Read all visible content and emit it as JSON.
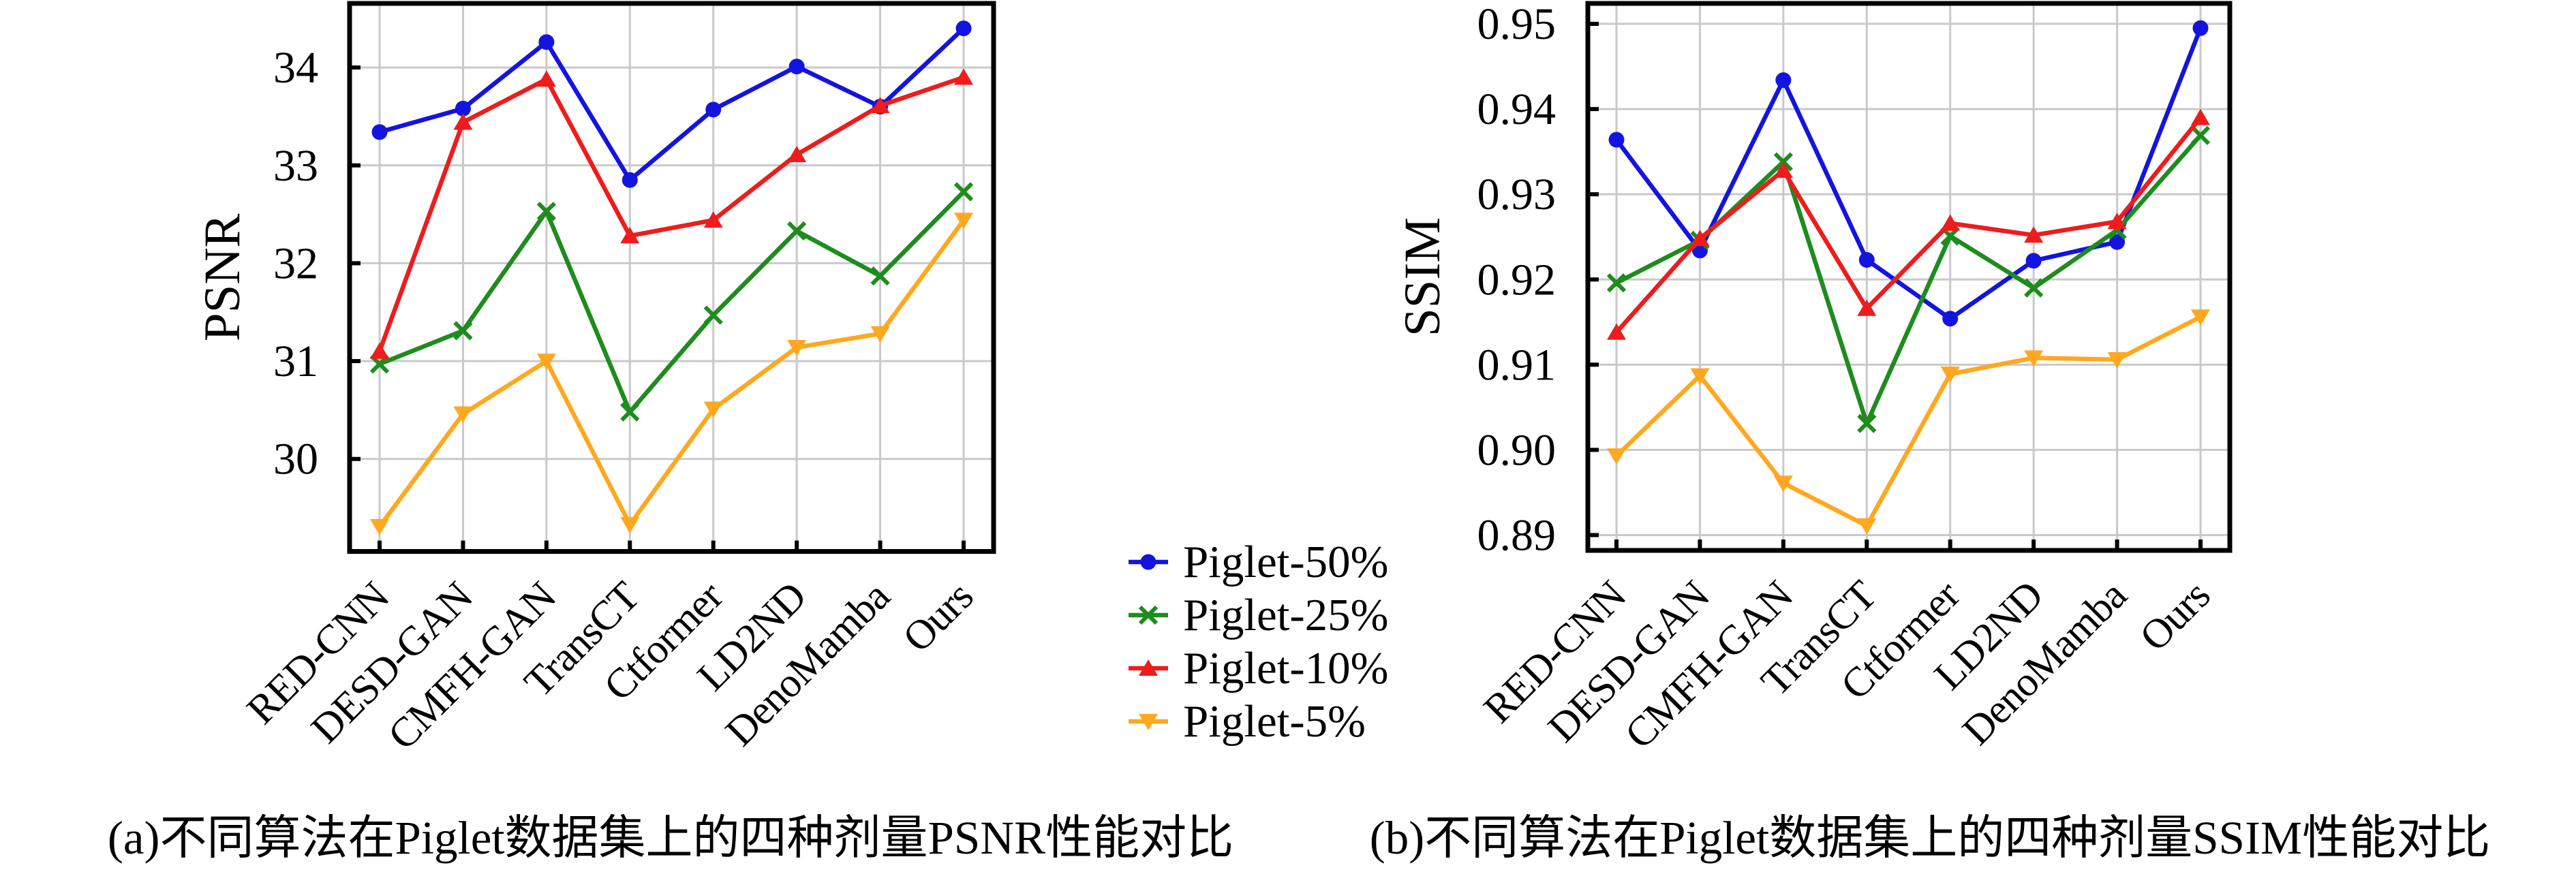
{
  "figure": {
    "background": "#ffffff",
    "text_color": "#000000",
    "grid_color": "#c9c9c9",
    "spine_color": "#000000"
  },
  "legend": {
    "position": "center of figure, between the two subplots",
    "items": [
      {
        "label": "Piglet-50%",
        "color": "#1414e0",
        "marker": "circle"
      },
      {
        "label": "Piglet-25%",
        "color": "#1e8c1e",
        "marker": "x"
      },
      {
        "label": "Piglet-10%",
        "color": "#ee1c1c",
        "marker": "triangle-up"
      },
      {
        "label": "Piglet-5%",
        "color": "#ffa81f",
        "marker": "triangle-down"
      }
    ]
  },
  "chart_data": [
    {
      "type": "line",
      "title": "",
      "caption": "(a)不同算法在Piglet数据集上的四种剂量PSNR性能对比",
      "xlabel": "",
      "ylabel": "PSNR",
      "grid": true,
      "categories": [
        "RED-CNN",
        "DESD-GAN",
        "CMFH-GAN",
        "TransCT",
        "Ctformer",
        "LD2ND",
        "DenoMamba",
        "Ours"
      ],
      "ylim": [
        29.055,
        34.655
      ],
      "yticks": [
        30,
        31,
        32,
        33,
        34
      ],
      "ytick_labels": [
        "30",
        "31",
        "32",
        "33",
        "34"
      ],
      "series": [
        {
          "name": "Piglet-50%",
          "color": "#1414e0",
          "marker": "circle",
          "values": [
            33.34,
            33.58,
            34.26,
            32.85,
            33.57,
            34.01,
            33.6,
            34.4
          ]
        },
        {
          "name": "Piglet-25%",
          "color": "#1e8c1e",
          "marker": "x",
          "values": [
            30.97,
            31.31,
            32.53,
            30.48,
            31.47,
            32.33,
            31.87,
            32.73
          ]
        },
        {
          "name": "Piglet-10%",
          "color": "#ee1c1c",
          "marker": "triangle-up",
          "values": [
            31.1,
            33.44,
            33.88,
            32.28,
            32.44,
            33.11,
            33.61,
            33.9
          ]
        },
        {
          "name": "Piglet-5%",
          "color": "#ffa81f",
          "marker": "triangle-down",
          "values": [
            29.31,
            30.46,
            31.0,
            29.33,
            30.51,
            31.14,
            31.28,
            32.44
          ]
        }
      ]
    },
    {
      "type": "line",
      "title": "",
      "caption": "(b)不同算法在Piglet数据集上的四种剂量SSIM性能对比",
      "xlabel": "",
      "ylabel": "SSIM",
      "grid": true,
      "categories": [
        "RED-CNN",
        "DESD-GAN",
        "CMFH-GAN",
        "TransCT",
        "Ctformer",
        "LD2ND",
        "DenoMamba",
        "Ours"
      ],
      "ylim": [
        0.8882,
        0.9524
      ],
      "yticks": [
        0.89,
        0.9,
        0.91,
        0.92,
        0.93,
        0.94,
        0.95
      ],
      "ytick_labels": [
        "0.89",
        "0.90",
        "0.91",
        "0.92",
        "0.93",
        "0.94",
        "0.95"
      ],
      "series": [
        {
          "name": "Piglet-50%",
          "color": "#1414e0",
          "marker": "circle",
          "values": [
            0.9364,
            0.9234,
            0.9434,
            0.9223,
            0.9154,
            0.9222,
            0.9244,
            0.9495
          ]
        },
        {
          "name": "Piglet-25%",
          "color": "#1e8c1e",
          "marker": "x",
          "values": [
            0.9196,
            0.9246,
            0.9338,
            0.9031,
            0.9251,
            0.919,
            0.9258,
            0.9369
          ]
        },
        {
          "name": "Piglet-10%",
          "color": "#ee1c1c",
          "marker": "triangle-up",
          "values": [
            0.9138,
            0.9248,
            0.9328,
            0.9166,
            0.9266,
            0.9252,
            0.9268,
            0.939
          ]
        },
        {
          "name": "Piglet-5%",
          "color": "#ffa81f",
          "marker": "triangle-down",
          "values": [
            0.8993,
            0.9087,
            0.8961,
            0.8911,
            0.9089,
            0.9108,
            0.9106,
            0.9156
          ]
        }
      ]
    }
  ]
}
